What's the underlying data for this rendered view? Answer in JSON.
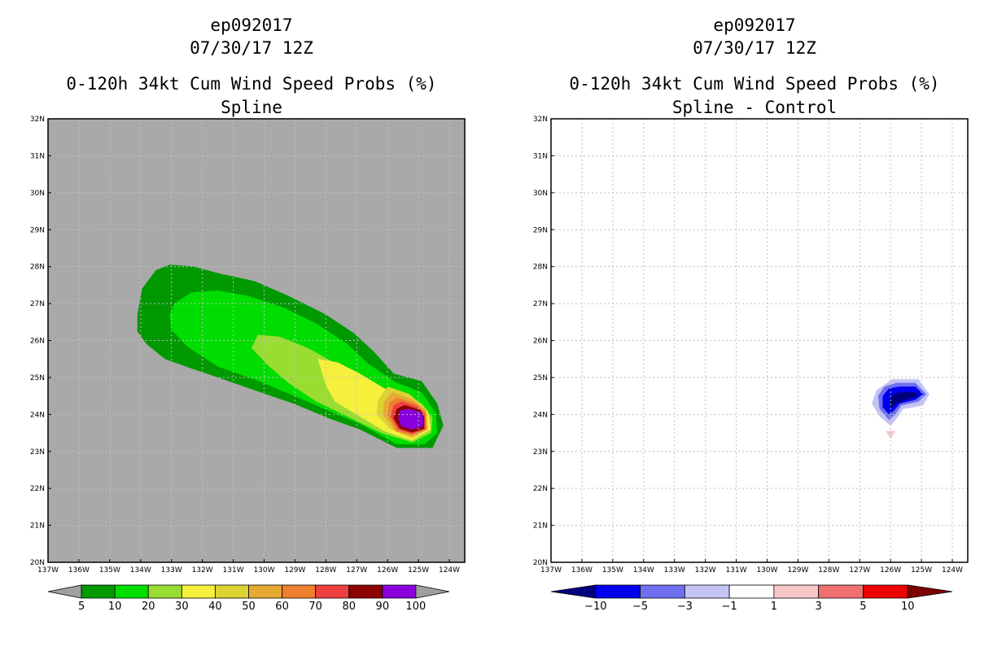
{
  "panels": [
    {
      "id": "left",
      "title_lines": [
        "ep092017",
        "07/30/17 12Z",
        "0-120h 34kt Cum Wind Speed Probs (%)",
        "Spline"
      ]
    },
    {
      "id": "right",
      "title_lines": [
        "ep092017",
        "07/30/17 12Z",
        "0-120h 34kt Cum Wind Speed Probs (%)",
        "Spline - Control"
      ]
    }
  ],
  "chart_data": [
    {
      "type": "heatmap",
      "title": "0-120h 34kt Cum Wind Speed Probs (%) Spline",
      "storm": "ep092017",
      "time": "07/30/17 12Z",
      "xlim": [
        -137,
        -123.5
      ],
      "ylim": [
        20,
        32
      ],
      "x_tick_values": [
        -137,
        -136,
        -135,
        -134,
        -133,
        -132,
        -131,
        -130,
        -129,
        -128,
        -127,
        -126,
        -125,
        -124
      ],
      "x_tick_labels": [
        "137W",
        "136W",
        "135W",
        "134W",
        "133W",
        "132W",
        "131W",
        "130W",
        "129W",
        "128W",
        "127W",
        "126W",
        "125W",
        "124W"
      ],
      "y_tick_values": [
        20,
        21,
        22,
        23,
        24,
        25,
        26,
        27,
        28,
        29,
        30,
        31,
        32
      ],
      "y_tick_labels": [
        "20N",
        "21N",
        "22N",
        "23N",
        "24N",
        "25N",
        "26N",
        "27N",
        "28N",
        "29N",
        "30N",
        "31N",
        "32N"
      ],
      "background": "#a9a9a9",
      "grid": true,
      "contour_levels": [
        5,
        10,
        20,
        30,
        40,
        50,
        60,
        70,
        80,
        90,
        100
      ],
      "colorbar_labels": [
        "5",
        "10",
        "20",
        "30",
        "40",
        "50",
        "60",
        "70",
        "80",
        "90",
        "100"
      ],
      "colorbar_colors": [
        "#a0a0a0",
        "#009900",
        "#00dd00",
        "#99dd33",
        "#f5f03c",
        "#dcd232",
        "#e6aa32",
        "#ee8030",
        "#ee4040",
        "#8b0000",
        "#8a00dd",
        "#a0a0a0"
      ],
      "regions": [
        {
          "level": 5,
          "color": "#009900",
          "points": [
            [
              -133.05,
              28.05
            ],
            [
              -132.3,
              28.0
            ],
            [
              -131.4,
              27.8
            ],
            [
              -130.3,
              27.6
            ],
            [
              -129.2,
              27.2
            ],
            [
              -128.0,
              26.7
            ],
            [
              -127.1,
              26.2
            ],
            [
              -126.45,
              25.7
            ],
            [
              -125.8,
              25.1
            ],
            [
              -124.9,
              24.9
            ],
            [
              -124.4,
              24.3
            ],
            [
              -124.2,
              23.7
            ],
            [
              -124.55,
              23.1
            ],
            [
              -125.7,
              23.1
            ],
            [
              -126.9,
              23.6
            ],
            [
              -127.9,
              23.9
            ],
            [
              -129.05,
              24.3
            ],
            [
              -130.1,
              24.6
            ],
            [
              -131.3,
              24.95
            ],
            [
              -132.35,
              25.25
            ],
            [
              -133.2,
              25.5
            ],
            [
              -133.8,
              25.9
            ],
            [
              -134.1,
              26.25
            ],
            [
              -134.1,
              26.7
            ],
            [
              -133.95,
              27.4
            ],
            [
              -133.5,
              27.9
            ]
          ]
        },
        {
          "level": 10,
          "color": "#00dd00",
          "points": [
            [
              -132.35,
              27.3
            ],
            [
              -131.5,
              27.35
            ],
            [
              -130.5,
              27.2
            ],
            [
              -129.4,
              26.9
            ],
            [
              -128.3,
              26.45
            ],
            [
              -127.3,
              25.9
            ],
            [
              -126.6,
              25.35
            ],
            [
              -125.7,
              24.85
            ],
            [
              -124.9,
              24.6
            ],
            [
              -124.45,
              24.05
            ],
            [
              -124.4,
              23.5
            ],
            [
              -124.8,
              23.2
            ],
            [
              -125.7,
              23.2
            ],
            [
              -126.9,
              23.75
            ],
            [
              -127.9,
              24.1
            ],
            [
              -129.0,
              24.5
            ],
            [
              -130.3,
              24.95
            ],
            [
              -131.5,
              25.3
            ],
            [
              -132.5,
              25.85
            ],
            [
              -133.0,
              26.3
            ],
            [
              -133.05,
              26.7
            ],
            [
              -132.9,
              27.0
            ]
          ]
        },
        {
          "level": 20,
          "color": "#99dd33",
          "points": [
            [
              -130.2,
              26.15
            ],
            [
              -129.5,
              26.1
            ],
            [
              -128.6,
              25.8
            ],
            [
              -127.3,
              25.2
            ],
            [
              -126.6,
              24.75
            ],
            [
              -125.8,
              24.65
            ],
            [
              -124.9,
              24.3
            ],
            [
              -124.55,
              23.9
            ],
            [
              -124.6,
              23.5
            ],
            [
              -125.2,
              23.25
            ],
            [
              -126.2,
              23.5
            ],
            [
              -127.3,
              23.95
            ],
            [
              -128.3,
              24.35
            ],
            [
              -129.2,
              24.85
            ],
            [
              -129.9,
              25.35
            ],
            [
              -130.4,
              25.8
            ]
          ]
        },
        {
          "level": 30,
          "color": "#f5f03c",
          "points": [
            [
              -128.25,
              25.5
            ],
            [
              -127.6,
              25.4
            ],
            [
              -126.9,
              25.1
            ],
            [
              -126.3,
              24.8
            ],
            [
              -125.6,
              24.45
            ],
            [
              -124.7,
              24.1
            ],
            [
              -124.6,
              23.6
            ],
            [
              -125.2,
              23.3
            ],
            [
              -126.1,
              23.55
            ],
            [
              -126.8,
              23.9
            ],
            [
              -127.7,
              24.35
            ],
            [
              -128.0,
              24.8
            ]
          ]
        },
        {
          "level": 40,
          "color": "#dcd232",
          "points": [
            [
              -126.0,
              24.75
            ],
            [
              -125.3,
              24.55
            ],
            [
              -124.75,
              24.15
            ],
            [
              -124.7,
              23.6
            ],
            [
              -125.2,
              23.35
            ],
            [
              -125.9,
              23.6
            ],
            [
              -126.35,
              24.0
            ],
            [
              -126.3,
              24.4
            ]
          ]
        },
        {
          "level": 50,
          "color": "#e6aa32",
          "points": [
            [
              -125.85,
              24.6
            ],
            [
              -125.2,
              24.4
            ],
            [
              -124.75,
              24.1
            ],
            [
              -124.72,
              23.6
            ],
            [
              -125.2,
              23.4
            ],
            [
              -125.75,
              23.55
            ],
            [
              -126.15,
              24.0
            ],
            [
              -126.1,
              24.35
            ]
          ]
        },
        {
          "level": 60,
          "color": "#ee8030",
          "points": [
            [
              -125.7,
              24.45
            ],
            [
              -125.1,
              24.3
            ],
            [
              -124.78,
              24.05
            ],
            [
              -124.75,
              23.6
            ],
            [
              -125.2,
              23.45
            ],
            [
              -125.7,
              23.55
            ],
            [
              -126.0,
              24.0
            ],
            [
              -125.95,
              24.3
            ]
          ]
        },
        {
          "level": 70,
          "color": "#ee4040",
          "points": [
            [
              -125.55,
              24.35
            ],
            [
              -125.0,
              24.2
            ],
            [
              -124.8,
              24.0
            ],
            [
              -124.78,
              23.6
            ],
            [
              -125.2,
              23.48
            ],
            [
              -125.65,
              23.6
            ],
            [
              -125.9,
              23.95
            ],
            [
              -125.8,
              24.25
            ]
          ]
        },
        {
          "level": 80,
          "color": "#8b0000",
          "points": [
            [
              -125.45,
              24.25
            ],
            [
              -124.95,
              24.12
            ],
            [
              -124.82,
              23.95
            ],
            [
              -124.82,
              23.62
            ],
            [
              -125.2,
              23.52
            ],
            [
              -125.6,
              23.62
            ],
            [
              -125.8,
              23.9
            ],
            [
              -125.7,
              24.15
            ]
          ]
        },
        {
          "level": 90,
          "color": "#8a00dd",
          "points": [
            [
              -125.3,
              24.15
            ],
            [
              -124.92,
              24.05
            ],
            [
              -124.85,
              23.9
            ],
            [
              -124.86,
              23.68
            ],
            [
              -125.2,
              23.6
            ],
            [
              -125.55,
              23.68
            ],
            [
              -125.65,
              23.88
            ],
            [
              -125.6,
              24.1
            ]
          ]
        }
      ]
    },
    {
      "type": "heatmap",
      "title": "0-120h 34kt Cum Wind Speed Probs (%) Spline - Control",
      "storm": "ep092017",
      "time": "07/30/17 12Z",
      "xlim": [
        -137,
        -123.5
      ],
      "ylim": [
        20,
        32
      ],
      "x_tick_values": [
        -137,
        -136,
        -135,
        -134,
        -133,
        -132,
        -131,
        -130,
        -129,
        -128,
        -127,
        -126,
        -125,
        -124
      ],
      "x_tick_labels": [
        "137W",
        "136W",
        "135W",
        "134W",
        "133W",
        "132W",
        "131W",
        "130W",
        "129W",
        "128W",
        "127W",
        "126W",
        "125W",
        "124W"
      ],
      "y_tick_values": [
        20,
        21,
        22,
        23,
        24,
        25,
        26,
        27,
        28,
        29,
        30,
        31,
        32
      ],
      "y_tick_labels": [
        "20N",
        "21N",
        "22N",
        "23N",
        "24N",
        "25N",
        "26N",
        "27N",
        "28N",
        "29N",
        "30N",
        "31N",
        "32N"
      ],
      "background": "#ffffff",
      "grid": true,
      "contour_levels": [
        -10,
        -5,
        -3,
        -1,
        1,
        3,
        5,
        10
      ],
      "colorbar_labels": [
        "-10",
        "-5",
        "-3",
        "-1",
        "1",
        "3",
        "5",
        "10"
      ],
      "colorbar_colors": [
        "#00007f",
        "#0000ee",
        "#6f6ff0",
        "#c4c4f4",
        "#ffffff",
        "#f8c8c8",
        "#f07070",
        "#ee0000",
        "#7f0000"
      ],
      "regions": [
        {
          "level": -1,
          "color": "#c4c4f4",
          "points": [
            [
              -125.95,
              24.95
            ],
            [
              -125.1,
              24.95
            ],
            [
              -124.75,
              24.55
            ],
            [
              -124.95,
              24.25
            ],
            [
              -125.6,
              24.15
            ],
            [
              -125.75,
              23.95
            ],
            [
              -126.0,
              23.7
            ],
            [
              -126.35,
              23.95
            ],
            [
              -126.6,
              24.3
            ],
            [
              -126.45,
              24.65
            ]
          ]
        },
        {
          "level": -3,
          "color": "#6f6ff0",
          "points": [
            [
              -125.8,
              24.85
            ],
            [
              -125.2,
              24.85
            ],
            [
              -124.85,
              24.55
            ],
            [
              -125.1,
              24.35
            ],
            [
              -125.65,
              24.25
            ],
            [
              -125.85,
              24.0
            ],
            [
              -126.05,
              23.85
            ],
            [
              -126.35,
              24.15
            ],
            [
              -126.4,
              24.5
            ],
            [
              -126.2,
              24.75
            ]
          ]
        },
        {
          "level": -5,
          "color": "#0000ee",
          "points": [
            [
              -125.7,
              24.75
            ],
            [
              -125.2,
              24.75
            ],
            [
              -124.95,
              24.55
            ],
            [
              -125.2,
              24.4
            ],
            [
              -125.7,
              24.3
            ],
            [
              -125.9,
              24.1
            ],
            [
              -126.05,
              24.0
            ],
            [
              -126.25,
              24.2
            ],
            [
              -126.25,
              24.5
            ],
            [
              -126.05,
              24.7
            ]
          ]
        },
        {
          "level": -10,
          "color": "#00007f",
          "points": [
            [
              -125.65,
              24.6
            ],
            [
              -125.2,
              24.6
            ],
            [
              -125.1,
              24.5
            ],
            [
              -125.5,
              24.4
            ],
            [
              -125.8,
              24.3
            ],
            [
              -126.0,
              24.15
            ],
            [
              -126.05,
              24.4
            ],
            [
              -125.9,
              24.55
            ]
          ]
        },
        {
          "level": 1,
          "color": "#f8c8c8",
          "points": [
            [
              -126.15,
              23.55
            ],
            [
              -125.85,
              23.55
            ],
            [
              -126.0,
              23.35
            ]
          ]
        }
      ]
    }
  ]
}
